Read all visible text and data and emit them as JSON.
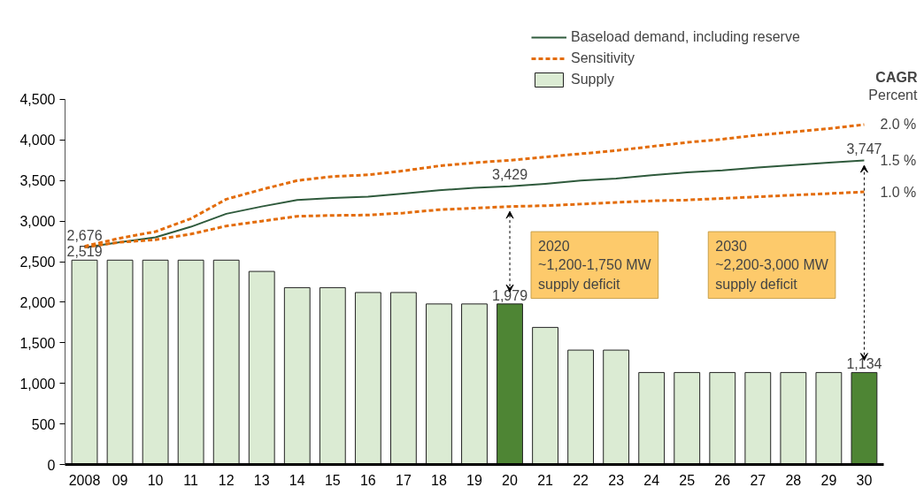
{
  "chart_data": {
    "type": "bar",
    "categories": [
      "2008",
      "09",
      "10",
      "11",
      "12",
      "13",
      "14",
      "15",
      "16",
      "17",
      "18",
      "19",
      "20",
      "21",
      "22",
      "23",
      "24",
      "25",
      "26",
      "27",
      "28",
      "29",
      "30"
    ],
    "series": [
      {
        "name": "Supply",
        "colors": [
          "#dbebd3",
          "#dbebd3",
          "#dbebd3",
          "#dbebd3",
          "#dbebd3",
          "#dbebd3",
          "#dbebd3",
          "#dbebd3",
          "#dbebd3",
          "#dbebd3",
          "#dbebd3",
          "#dbebd3",
          "#4e8534",
          "#dbebd3",
          "#dbebd3",
          "#dbebd3",
          "#dbebd3",
          "#dbebd3",
          "#dbebd3",
          "#dbebd3",
          "#dbebd3",
          "#dbebd3",
          "#4e8534"
        ],
        "values": [
          2519,
          2519,
          2519,
          2519,
          2519,
          2380,
          2180,
          2180,
          2120,
          2120,
          1979,
          1979,
          1979,
          1690,
          1410,
          1410,
          1134,
          1134,
          1134,
          1134,
          1134,
          1134,
          1134
        ],
        "value_labels": [
          "2,519",
          null,
          null,
          null,
          null,
          null,
          null,
          null,
          null,
          null,
          null,
          null,
          "1,979",
          null,
          null,
          null,
          null,
          null,
          null,
          null,
          null,
          null,
          "1,134"
        ]
      },
      {
        "name": "Baseload demand, including reserve",
        "type": "line",
        "color": "#2f5a3c",
        "line_style": "solid",
        "values": [
          2676,
          2740,
          2800,
          2930,
          3090,
          3180,
          3260,
          3285,
          3300,
          3340,
          3380,
          3410,
          3429,
          3460,
          3500,
          3525,
          3565,
          3600,
          3625,
          3660,
          3690,
          3720,
          3747
        ],
        "value_labels": [
          "2,676",
          null,
          null,
          null,
          null,
          null,
          null,
          null,
          null,
          null,
          null,
          null,
          "3,429",
          null,
          null,
          null,
          null,
          null,
          null,
          null,
          null,
          null,
          "3,747"
        ]
      },
      {
        "name": "Sensitivity",
        "type": "line",
        "color": "#e36c0a",
        "line_style": "dashed",
        "values": [
          2690,
          2790,
          2870,
          3030,
          3270,
          3390,
          3500,
          3550,
          3570,
          3620,
          3680,
          3720,
          3750,
          3790,
          3830,
          3870,
          3920,
          3970,
          4010,
          4060,
          4100,
          4140,
          4190
        ]
      },
      {
        "type": "line",
        "color": "#e36c0a",
        "line_style": "dashed",
        "values": [
          2680,
          2740,
          2770,
          2840,
          2940,
          3000,
          3060,
          3070,
          3075,
          3100,
          3140,
          3160,
          3180,
          3190,
          3210,
          3230,
          3250,
          3260,
          3280,
          3300,
          3320,
          3340,
          3360
        ]
      }
    ],
    "ylim": [
      0,
      4500
    ],
    "yticks": [
      0,
      500,
      {
        "value": 1000,
        "label": "1,000"
      },
      {
        "value": 1500,
        "label": "1,500"
      },
      {
        "value": 2000,
        "label": "2,000"
      },
      {
        "value": 2500,
        "label": "2,500"
      },
      {
        "value": 3000,
        "label": "3,000"
      },
      {
        "value": 3500,
        "label": "3,500"
      },
      {
        "value": 4000,
        "label": "4,000"
      },
      {
        "value": 4500,
        "label": "4,500"
      }
    ],
    "grid": false,
    "legend": "top right",
    "annotations": [
      "CAGR",
      "Percent",
      {
        "text": "2.0 %",
        "x": "30",
        "y": 4190
      },
      {
        "text": "1.5 %",
        "x": "30",
        "y": 3747
      },
      {
        "text": "1.0 %",
        "x": "30",
        "y": 3360
      },
      "2020\n~1,200-1,750 MW\nsupply deficit",
      "2030\n~2,200-3,000 MW\nsupply deficit"
    ]
  }
}
